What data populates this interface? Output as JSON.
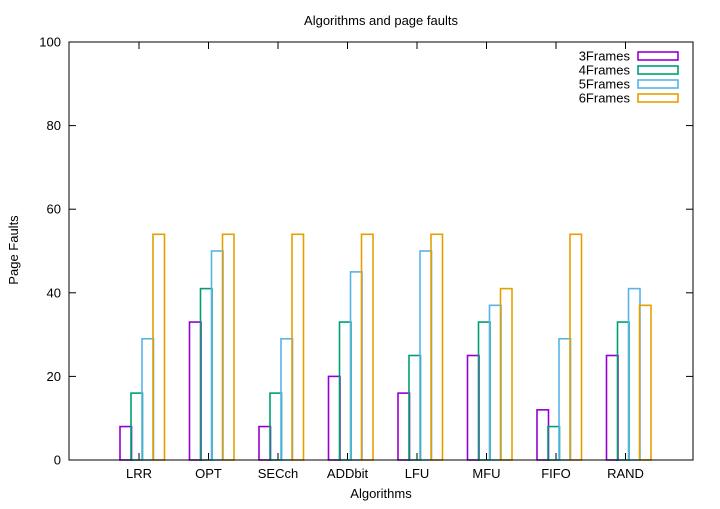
{
  "chart_data": {
    "type": "bar",
    "title": "Algorithms and page faults",
    "xlabel": "Algorithms",
    "ylabel": "Page Faults",
    "ylim": [
      0,
      100
    ],
    "yticks": [
      0,
      20,
      40,
      60,
      80,
      100
    ],
    "grid": false,
    "legend_position": "top-right",
    "categories": [
      "LRR",
      "OPT",
      "SECch",
      "ADDbit",
      "LFU",
      "MFU",
      "FIFO",
      "RAND"
    ],
    "series": [
      {
        "name": "3Frames",
        "color": "#9400d3",
        "values": [
          8,
          33,
          8,
          20,
          16,
          25,
          12,
          25
        ]
      },
      {
        "name": "4Frames",
        "color": "#009e73",
        "values": [
          16,
          41,
          16,
          33,
          25,
          33,
          8,
          33
        ]
      },
      {
        "name": "5Frames",
        "color": "#56b4e9",
        "values": [
          29,
          50,
          29,
          45,
          50,
          37,
          29,
          41
        ]
      },
      {
        "name": "6Frames",
        "color": "#e69f00",
        "values": [
          54,
          54,
          54,
          54,
          54,
          41,
          54,
          37
        ]
      }
    ]
  }
}
